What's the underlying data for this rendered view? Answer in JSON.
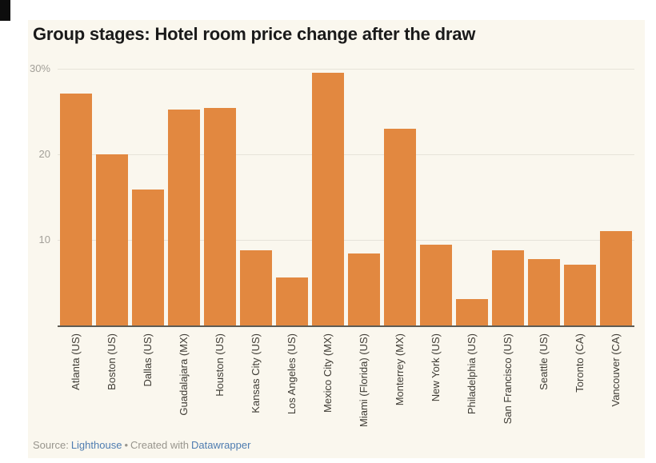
{
  "chart_data": {
    "type": "bar",
    "title": "Group stages: Hotel room price change after the draw",
    "categories": [
      "Atlanta (US)",
      "Boston (US)",
      "Dallas (US)",
      "Guadalajara (MX)",
      "Houston (US)",
      "Kansas City (US)",
      "Los Angeles (US)",
      "Mexico City (MX)",
      "Miami (Florida) (US)",
      "Monterrey (MX)",
      "New York (US)",
      "Philadelphia (US)",
      "San Francisco (US)",
      "Seattle (US)",
      "Toronto (CA)",
      "Vancouver (CA)"
    ],
    "values": [
      27.1,
      20.0,
      15.9,
      25.2,
      25.4,
      8.8,
      5.6,
      29.5,
      8.4,
      23.0,
      9.4,
      3.1,
      8.8,
      7.8,
      7.1,
      11.0
    ],
    "unit": "%",
    "xlabel": "",
    "ylabel": "",
    "ylim": [
      0,
      30
    ],
    "yticks": [
      {
        "value": 30,
        "label": "30%"
      },
      {
        "value": 20,
        "label": "20"
      },
      {
        "value": 10,
        "label": "10"
      }
    ],
    "grid": true,
    "legend": false,
    "x_tick_rotation": 90,
    "bar_color": "#E28840"
  },
  "footer": {
    "label": "Source:",
    "source": "Lighthouse",
    "separator": "•",
    "credit": "Created with",
    "credit_link": "Datawrapper"
  },
  "colors": {
    "bar": "#E28840",
    "page_background": "#FFFFFF",
    "card_background": "#FAF7EE",
    "gridline": "#E6E3D9",
    "axis_line": "#5E5C55",
    "y_tick_label": "#A3A099",
    "category_label": "#3F3C35",
    "title": "#1A1A1A",
    "footer_text": "#98958D",
    "footer_link": "#4E7CB0"
  }
}
